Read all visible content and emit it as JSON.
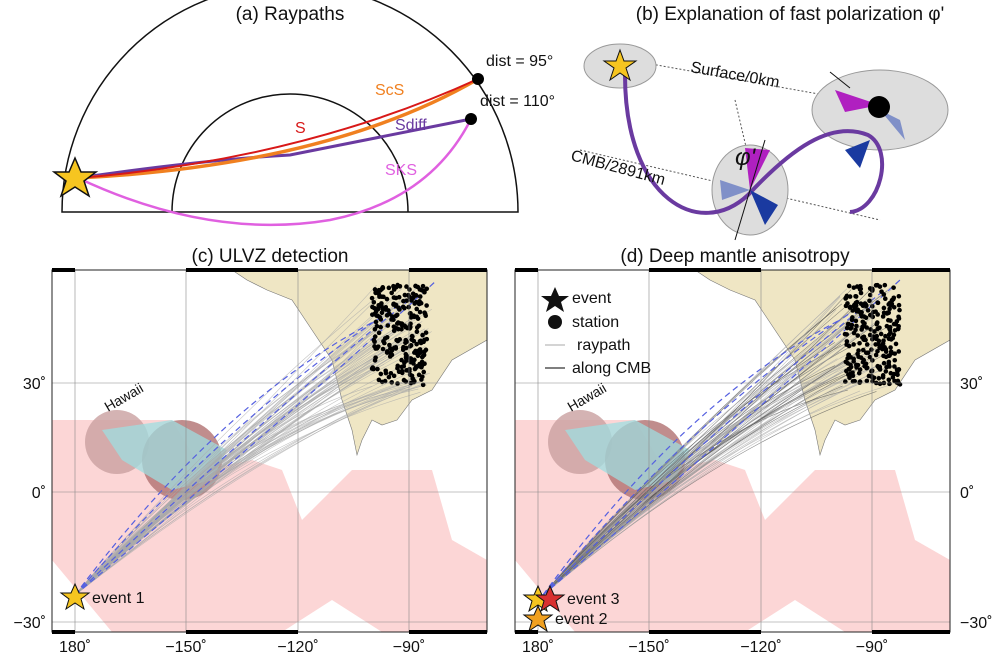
{
  "panel_a": {
    "title": "(a) Raypaths",
    "dist_95": "dist = 95°",
    "dist_110": "dist = 110°",
    "scs": "ScS",
    "s": "S",
    "sdiff": "Sdiff",
    "sks": "SKS"
  },
  "panel_b": {
    "title": "(b) Explanation of fast polarization φ'",
    "surface": "Surface/0km",
    "cmb": "CMB/2891km",
    "phi": "φ'"
  },
  "panel_c": {
    "title": "(c) ULVZ detection",
    "hawaii": "Hawaii",
    "event": "event 1",
    "lat_labels": [
      "30˚",
      "0˚",
      "−30˚"
    ],
    "lon_labels": [
      "180˚",
      "−150˚",
      "−120˚",
      "−90˚"
    ]
  },
  "panel_d": {
    "title": "(d) Deep mantle anisotropy",
    "hawaii": "Hawaii",
    "legend": [
      "event",
      "station",
      "raypath",
      "along CMB"
    ],
    "events": [
      "event 3",
      "event 2"
    ],
    "lat_labels": [
      "30˚",
      "0˚",
      "−30˚"
    ],
    "lon_labels": [
      "180˚",
      "−150˚",
      "−120˚",
      "−90˚"
    ]
  }
}
